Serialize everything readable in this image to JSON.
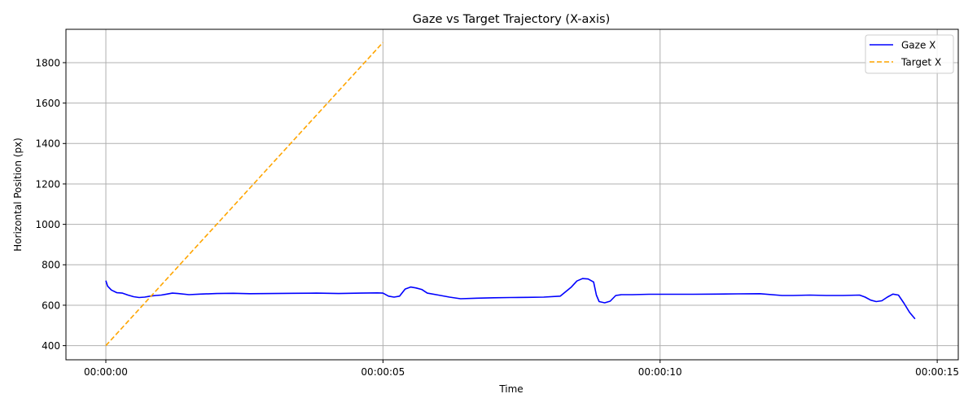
{
  "chart_data": {
    "type": "line",
    "title": "Gaze vs Target Trajectory (X-axis)",
    "xlabel": "Time",
    "ylabel": "Horizontal Position (px)",
    "xlim": [
      -0.72,
      15.38
    ],
    "ylim": [
      330,
      1965
    ],
    "x_ticks": [
      {
        "value": 0,
        "label": "00:00:00"
      },
      {
        "value": 5,
        "label": "00:00:05"
      },
      {
        "value": 10,
        "label": "00:00:10"
      },
      {
        "value": 15,
        "label": "00:00:15"
      }
    ],
    "y_ticks": [
      400,
      600,
      800,
      1000,
      1200,
      1400,
      1600,
      1800
    ],
    "grid": true,
    "legend_position": "top-right",
    "series": [
      {
        "name": "Gaze X",
        "color": "#0000ff",
        "style": "solid",
        "x": [
          0,
          0.03,
          0.1,
          0.2,
          0.3,
          0.4,
          0.5,
          0.6,
          0.7,
          0.8,
          0.9,
          1.0,
          1.1,
          1.2,
          1.3,
          1.5,
          1.7,
          2.0,
          2.3,
          2.6,
          3.0,
          3.4,
          3.8,
          4.2,
          4.6,
          4.9,
          5.0,
          5.1,
          5.2,
          5.3,
          5.4,
          5.5,
          5.6,
          5.7,
          5.8,
          6.0,
          6.2,
          6.4,
          6.7,
          7.0,
          7.3,
          7.6,
          7.9,
          8.2,
          8.4,
          8.5,
          8.6,
          8.7,
          8.8,
          8.85,
          8.9,
          9.0,
          9.1,
          9.2,
          9.3,
          9.5,
          9.8,
          10.2,
          10.6,
          11.0,
          11.4,
          11.8,
          12.2,
          12.4,
          12.7,
          13.0,
          13.3,
          13.6,
          13.7,
          13.8,
          13.9,
          14.0,
          14.1,
          14.2,
          14.3,
          14.4,
          14.5,
          14.6
        ],
        "y": [
          722,
          695,
          675,
          662,
          660,
          650,
          642,
          638,
          640,
          645,
          648,
          650,
          655,
          660,
          658,
          652,
          655,
          658,
          659,
          657,
          658,
          659,
          660,
          658,
          660,
          661,
          660,
          645,
          640,
          645,
          680,
          690,
          685,
          678,
          660,
          650,
          640,
          632,
          635,
          637,
          638,
          639,
          640,
          645,
          690,
          720,
          732,
          730,
          715,
          650,
          618,
          612,
          620,
          648,
          652,
          652,
          654,
          654,
          654,
          655,
          656,
          657,
          648,
          648,
          650,
          648,
          648,
          650,
          640,
          625,
          618,
          622,
          640,
          655,
          650,
          610,
          565,
          532
        ]
      },
      {
        "name": "Target X",
        "color": "#ffa500",
        "style": "dashed",
        "x": [
          0,
          5
        ],
        "y": [
          400,
          1900
        ]
      }
    ]
  }
}
